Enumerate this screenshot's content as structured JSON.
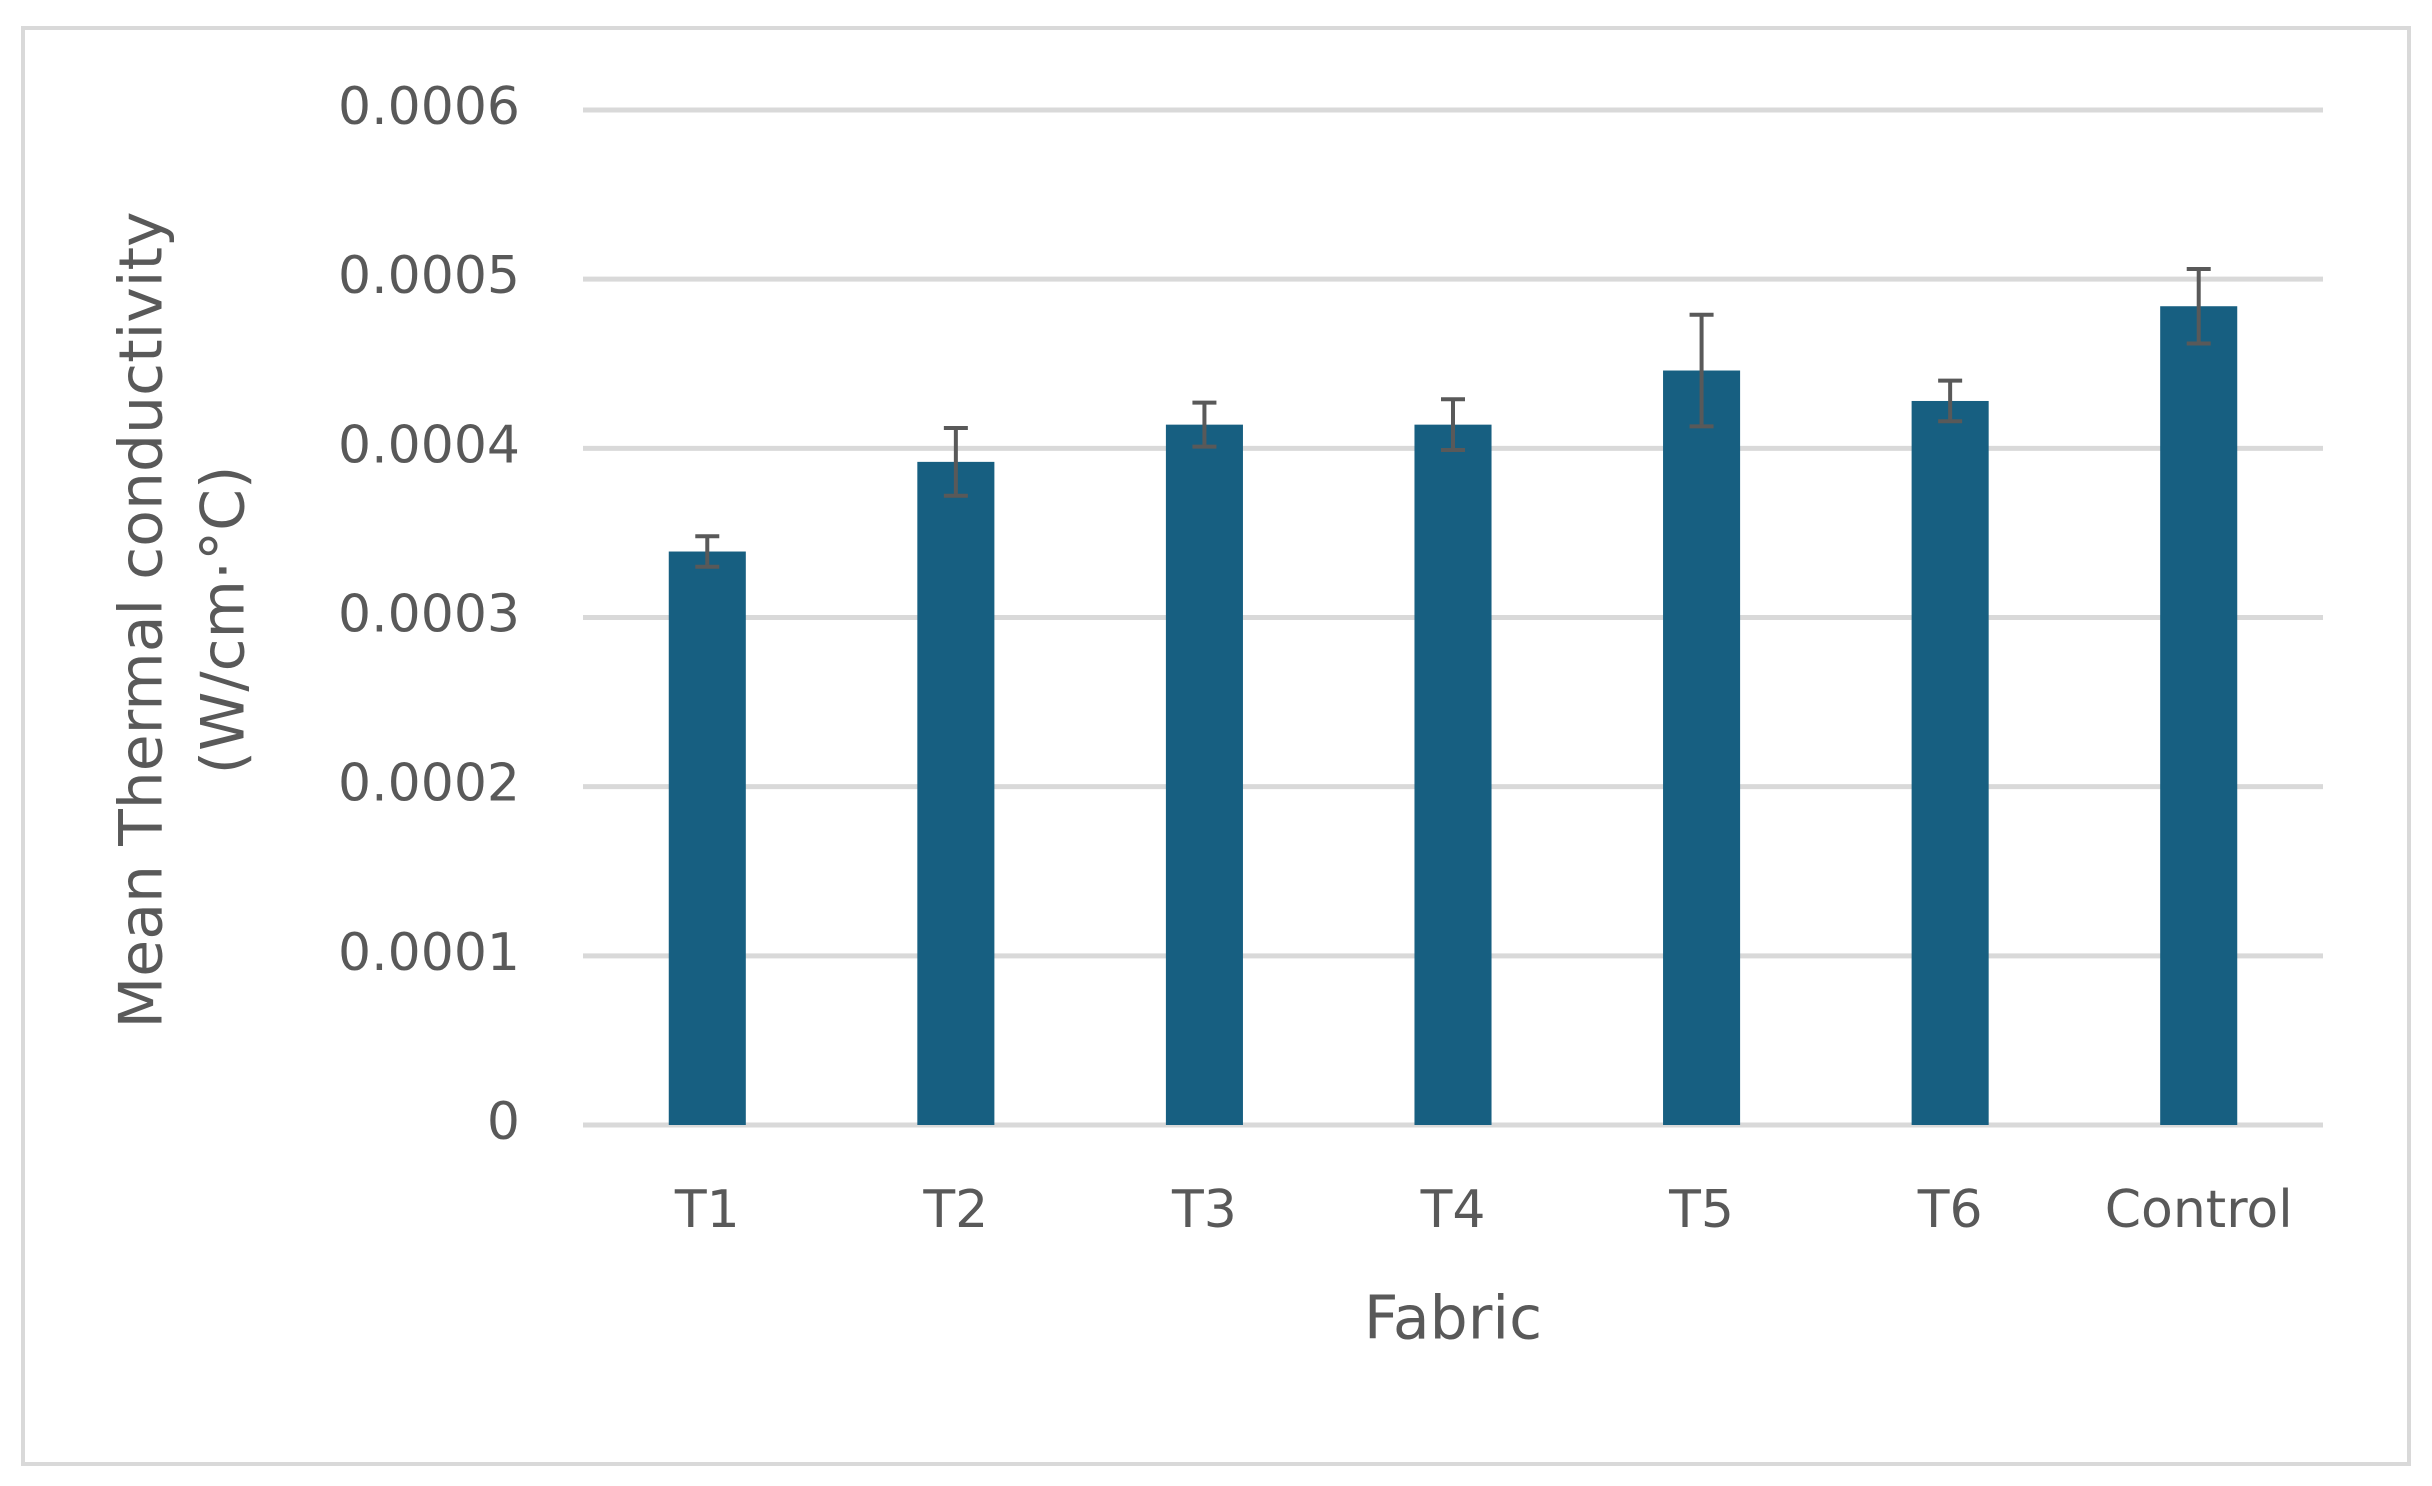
{
  "chart_data": {
    "type": "bar",
    "x_label": "Fabric",
    "y_label": [
      "Mean Thermal conductivity",
      "(W/cm·°C)"
    ],
    "categories": [
      "T1",
      "T2",
      "T3",
      "T4",
      "T5",
      "T6",
      "Control"
    ],
    "values": [
      0.000339,
      0.000392,
      0.000414,
      0.000414,
      0.000446,
      0.000428,
      0.000484
    ],
    "errors": [
      9e-06,
      2e-05,
      1.3e-05,
      1.5e-05,
      3.3e-05,
      1.2e-05,
      2.2e-05
    ],
    "color": "#175f81",
    "ylim": [
      0,
      0.0006
    ],
    "yticks": [
      0,
      0.0001,
      0.0002,
      0.0003,
      0.0004,
      0.0005,
      0.0006
    ],
    "grid": true
  }
}
